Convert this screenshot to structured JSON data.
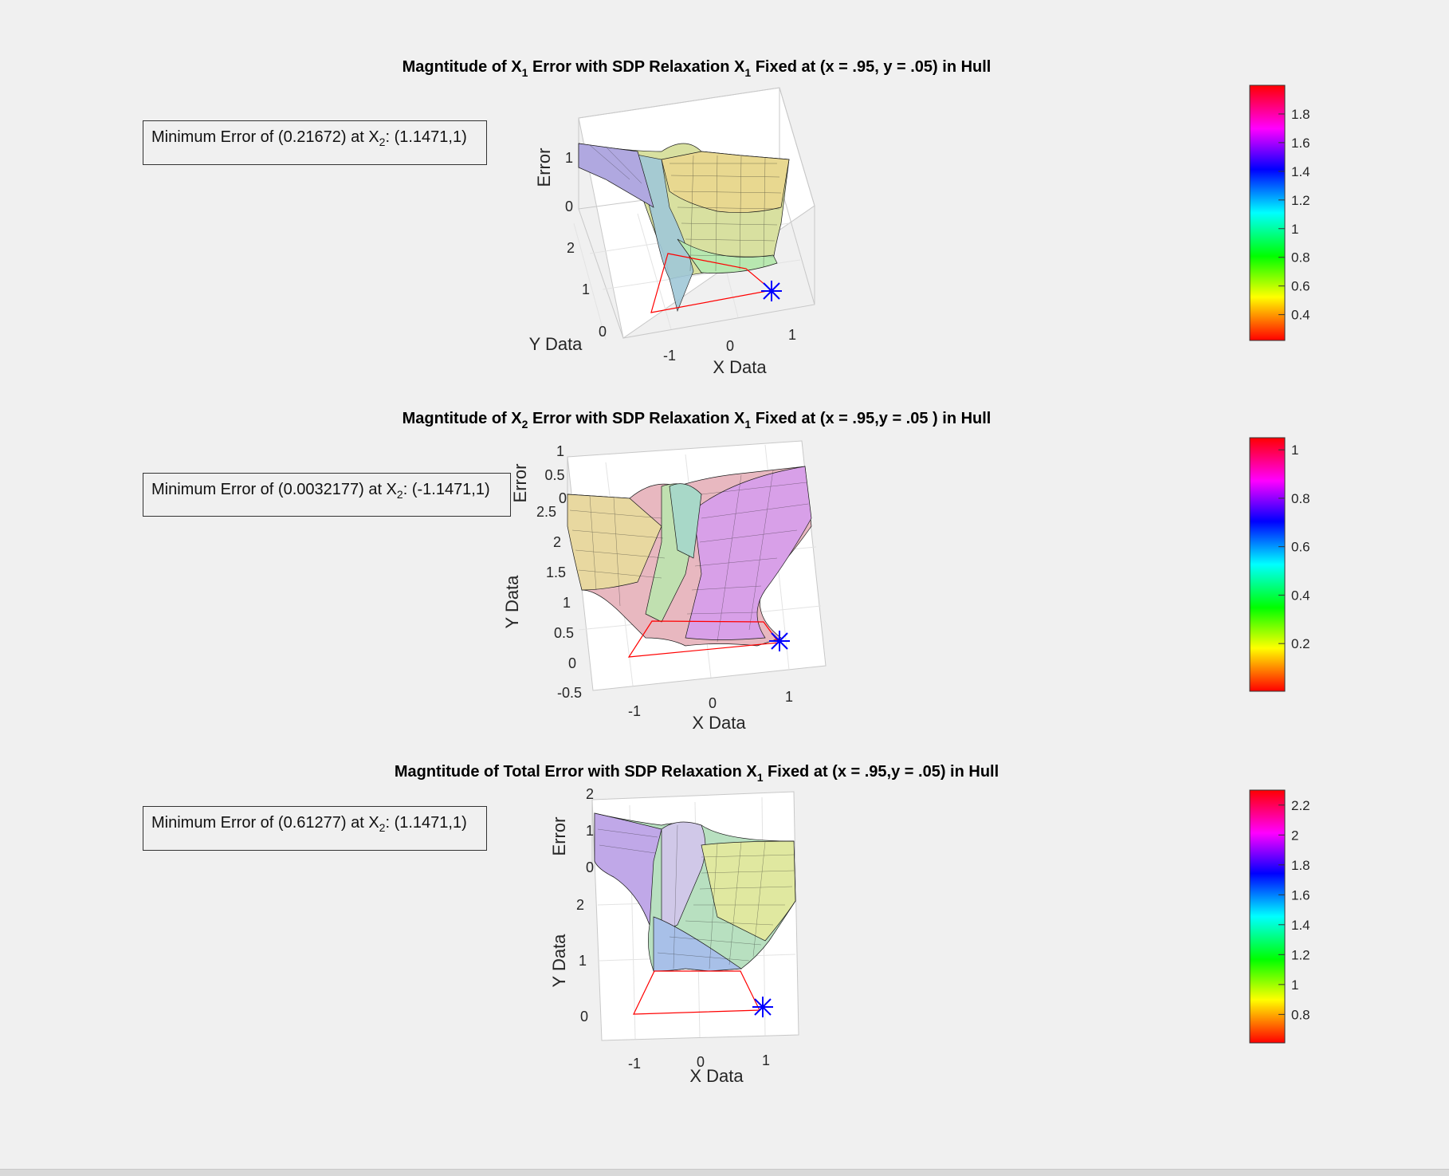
{
  "chart_data": [
    {
      "type": "surface",
      "title": "Magntitude of X1 Error with SDP Relaxation X1 Fixed at (x = .95, y = .05) in Hull",
      "title_parts": {
        "a": "Magntitude of X",
        "s1": "1",
        "b": " Error with SDP Relaxation X",
        "s2": "1",
        "c": " Fixed at (x = .95, y = .05) in Hull"
      },
      "xlabel": "X Data",
      "ylabel": "Y Data",
      "zlabel": "Error",
      "x_ticks": [
        "-1",
        "0",
        "1"
      ],
      "y_ticks": [
        "0",
        "1",
        "2"
      ],
      "z_ticks": [
        "0",
        "1"
      ],
      "annotation": {
        "text_a": "Minimum Error of (0.21672) at X",
        "sub": "2",
        "text_b": ": (1.1471,1)"
      },
      "min_error": 0.21672,
      "min_point": [
        1.1471,
        1
      ],
      "fixed_point": [
        0.95,
        0.05
      ],
      "colorbar": {
        "ticks": [
          "1.8",
          "1.6",
          "1.4",
          "1.2",
          "1",
          "0.8",
          "0.6",
          "0.4"
        ],
        "range": [
          0.22,
          2.0
        ],
        "colormap": "hsv"
      },
      "hull_color": "#ff0000",
      "marker_color": "#0000ff"
    },
    {
      "type": "surface",
      "title": "Magntitude of X2 Error with SDP Relaxation X1 Fixed at (x = .95,y = .05 ) in Hull",
      "title_parts": {
        "a": "Magntitude of X",
        "s1": "2",
        "b": " Error with SDP Relaxation X",
        "s2": "1",
        "c": " Fixed at (x = .95,y = .05 ) in Hull"
      },
      "xlabel": "X Data",
      "ylabel": "Y Data",
      "zlabel": "Error",
      "x_ticks": [
        "-1",
        "0",
        "1"
      ],
      "y_ticks": [
        "-0.5",
        "0",
        "0.5",
        "1",
        "1.5",
        "2",
        "2.5"
      ],
      "z_ticks": [
        "0",
        "0.5",
        "1"
      ],
      "annotation": {
        "text_a": "Minimum Error of (0.0032177) at X",
        "sub": "2",
        "text_b": ": (-1.1471,1)"
      },
      "min_error": 0.0032177,
      "min_point": [
        -1.1471,
        1
      ],
      "fixed_point": [
        0.95,
        0.05
      ],
      "colorbar": {
        "ticks": [
          "1",
          "0.8",
          "0.6",
          "0.4",
          "0.2"
        ],
        "range": [
          0.003,
          1.05
        ],
        "colormap": "hsv"
      },
      "hull_color": "#ff0000",
      "marker_color": "#0000ff"
    },
    {
      "type": "surface",
      "title": "Magntitude of Total Error with SDP Relaxation X1 Fixed at (x = .95,y = .05) in Hull",
      "title_parts": {
        "a": "Magntitude of Total Error with SDP Relaxation X",
        "s1": "1",
        "b": " Fixed at (x = .95,y = .05) in Hull",
        "s2": "",
        "c": ""
      },
      "xlabel": "X Data",
      "ylabel": "Y Data",
      "zlabel": "Error",
      "x_ticks": [
        "-1",
        "0",
        "1"
      ],
      "y_ticks": [
        "0",
        "1",
        "2"
      ],
      "z_ticks": [
        "0",
        "1",
        "2"
      ],
      "annotation": {
        "text_a": "Minimum Error of (0.61277) at X",
        "sub": "2",
        "text_b": ": (1.1471,1)"
      },
      "min_error": 0.61277,
      "min_point": [
        1.1471,
        1
      ],
      "fixed_point": [
        0.95,
        0.05
      ],
      "colorbar": {
        "ticks": [
          "2.2",
          "2",
          "1.8",
          "1.6",
          "1.4",
          "1.2",
          "1",
          "0.8"
        ],
        "range": [
          0.61,
          2.3
        ],
        "colormap": "hsv"
      },
      "hull_color": "#ff0000",
      "marker_color": "#0000ff"
    }
  ]
}
